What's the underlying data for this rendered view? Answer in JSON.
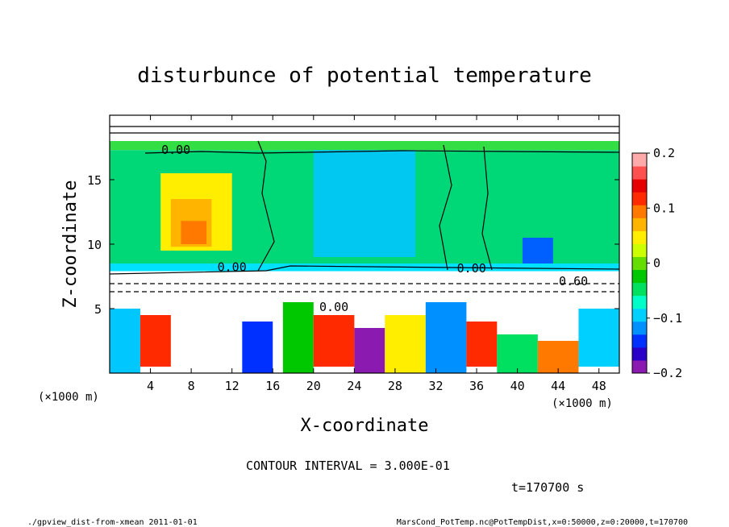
{
  "chart_data": {
    "type": "heatmap",
    "title": "disturbunce of potential temperature",
    "xlabel": "X-coordinate",
    "ylabel": "Z-coordinate",
    "xunit": "(×1000 m)",
    "yunit": "(×1000 m)",
    "xlim": [
      0,
      50
    ],
    "ylim": [
      0,
      20
    ],
    "xticks": [
      4,
      8,
      12,
      16,
      20,
      24,
      28,
      32,
      36,
      40,
      44,
      48
    ],
    "yticks": [
      5,
      10,
      15
    ],
    "colorbar": {
      "min": -0.2,
      "max": 0.2,
      "ticks": [
        {
          "value": 0.2,
          "label": "0.2"
        },
        {
          "value": 0.1,
          "label": "0.1"
        },
        {
          "value": 0,
          "label": "0"
        },
        {
          "value": -0.1,
          "label": "−0.1"
        },
        {
          "value": -0.2,
          "label": "−0.2"
        }
      ],
      "colors": [
        "#8a1ab0",
        "#2a00c8",
        "#0030ff",
        "#0090ff",
        "#00d0ff",
        "#00ffc8",
        "#00e060",
        "#00c800",
        "#66dd00",
        "#ccff00",
        "#ffee00",
        "#ffb400",
        "#ff7800",
        "#ff2a00",
        "#e60000",
        "#ff5050",
        "#ffaaaa"
      ]
    },
    "contour_interval_text": "CONTOUR INTERVAL = 3.000E-01",
    "contour_labels": [
      {
        "x": 6.5,
        "z": 17.0,
        "text": "0.00"
      },
      {
        "x": 12.0,
        "z": 7.9,
        "text": "0.00"
      },
      {
        "x": 35.5,
        "z": 7.8,
        "text": "0.00"
      },
      {
        "x": 22.0,
        "z": 4.8,
        "text": "0.00"
      },
      {
        "x": 45.5,
        "z": 6.8,
        "text": "0.60"
      }
    ],
    "field_regions": [
      {
        "x0": 0,
        "x1": 50,
        "z0": 8.5,
        "z1": 17.3,
        "color": "#00d878"
      },
      {
        "x0": 20,
        "x1": 30,
        "z0": 9.0,
        "z1": 18.0,
        "color": "#00c8f0"
      },
      {
        "x0": 5,
        "x1": 12,
        "z0": 9.5,
        "z1": 15.5,
        "color": "#ffee00"
      },
      {
        "x0": 6,
        "x1": 10,
        "z0": 9.8,
        "z1": 13.5,
        "color": "#ffb400"
      },
      {
        "x0": 7,
        "x1": 9.5,
        "z0": 10.0,
        "z1": 11.8,
        "color": "#ff7800"
      },
      {
        "x0": 40.5,
        "x1": 43.5,
        "z0": 8.2,
        "z1": 10.5,
        "color": "#0060ff"
      },
      {
        "x0": 0,
        "x1": 50,
        "z0": 17.3,
        "z1": 18.0,
        "color": "#33dd44"
      },
      {
        "x0": 0,
        "x1": 50,
        "z0": 7.9,
        "z1": 8.5,
        "color": "#00e0ff"
      },
      {
        "x0": 0,
        "x1": 50,
        "z0": 5.5,
        "z1": 7.9,
        "color": "#ffffff"
      },
      {
        "x0": 0,
        "x1": 50,
        "z0": 18.0,
        "z1": 20.0,
        "color": "#ffffff"
      },
      {
        "x0": 0,
        "x1": 50,
        "z0": 0,
        "z1": 5.5,
        "color": "#ffffff"
      },
      {
        "x0": 0,
        "x1": 3,
        "z0": 0,
        "z1": 5.0,
        "color": "#00c8ff"
      },
      {
        "x0": 3,
        "x1": 6,
        "z0": 0.5,
        "z1": 4.5,
        "color": "#ff2a00"
      },
      {
        "x0": 13,
        "x1": 16,
        "z0": 0,
        "z1": 4.0,
        "color": "#0030ff"
      },
      {
        "x0": 17,
        "x1": 20,
        "z0": 0,
        "z1": 5.5,
        "color": "#00c800"
      },
      {
        "x0": 20,
        "x1": 24,
        "z0": 0.5,
        "z1": 4.5,
        "color": "#ff2a00"
      },
      {
        "x0": 24,
        "x1": 27,
        "z0": 0,
        "z1": 3.5,
        "color": "#8a1ab0"
      },
      {
        "x0": 27,
        "x1": 31,
        "z0": 0,
        "z1": 4.5,
        "color": "#ffee00"
      },
      {
        "x0": 31,
        "x1": 35,
        "z0": 0,
        "z1": 5.5,
        "color": "#0090ff"
      },
      {
        "x0": 35,
        "x1": 38,
        "z0": 0.5,
        "z1": 4.0,
        "color": "#ff2a00"
      },
      {
        "x0": 38,
        "x1": 42,
        "z0": 0,
        "z1": 3.0,
        "color": "#00e060"
      },
      {
        "x0": 42,
        "x1": 46,
        "z0": 0,
        "z1": 2.5,
        "color": "#ff7800"
      },
      {
        "x0": 46,
        "x1": 50,
        "z0": 0.5,
        "z1": 5.0,
        "color": "#00d0ff"
      }
    ]
  },
  "timestamp": "t=170700 s",
  "footer_left": "./gpview_dist-from-xmean   2011-01-01",
  "footer_right": "MarsCond_PotTemp.nc@PotTempDist,x=0:50000,z=0:20000,t=170700"
}
